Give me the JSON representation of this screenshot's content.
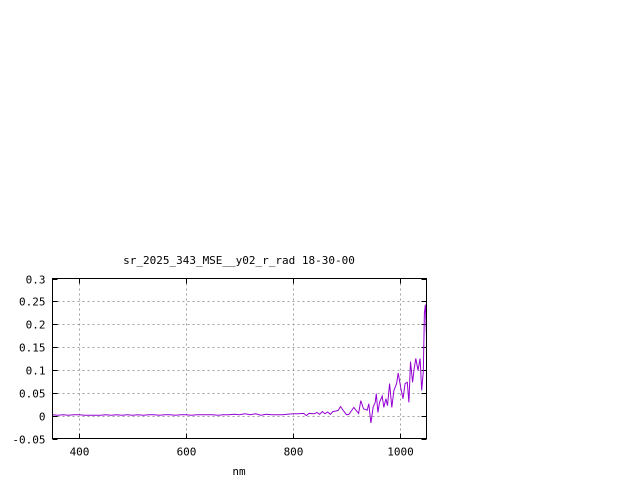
{
  "chart_data": {
    "type": "line",
    "title": "sr_2025_343_MSE__y02_r_rad 18-30-00",
    "xlabel": "nm",
    "ylabel": "",
    "xlim": [
      350,
      1050
    ],
    "ylim": [
      -0.05,
      0.3
    ],
    "xticks": [
      400,
      600,
      800,
      1000
    ],
    "xtick_labels": [
      "400",
      "600",
      "800",
      "1000"
    ],
    "yticks": [
      -0.05,
      0,
      0.05,
      0.1,
      0.15,
      0.2,
      0.25,
      0.3
    ],
    "ytick_labels": [
      "-0.05",
      "0",
      "0.05",
      "0.1",
      "0.15",
      "0.2",
      "0.25",
      "0.3"
    ],
    "grid": true,
    "series_color": "#9400d3",
    "series": [
      {
        "x": [
          350,
          360,
          370,
          380,
          390,
          400,
          410,
          420,
          430,
          440,
          450,
          460,
          470,
          480,
          490,
          500,
          510,
          520,
          530,
          540,
          550,
          560,
          570,
          580,
          590,
          600,
          610,
          620,
          630,
          640,
          650,
          660,
          670,
          680,
          690,
          700,
          710,
          720,
          730,
          740,
          750,
          760,
          770,
          780,
          790,
          800,
          810,
          820,
          825,
          830,
          840,
          845,
          850,
          855,
          860,
          865,
          870,
          875,
          880,
          885,
          889,
          895,
          900,
          905,
          914,
          923,
          927,
          932,
          939,
          942,
          946,
          950,
          954,
          956,
          959,
          962,
          967,
          970,
          974,
          977,
          981,
          985,
          989,
          994,
          997,
          1002,
          1006,
          1010,
          1014,
          1017,
          1020,
          1024,
          1027,
          1030,
          1034,
          1038,
          1041,
          1044,
          1046,
          1048,
          1050
        ],
        "y": [
          0.002,
          0.001,
          0.002,
          0.001,
          0.002,
          0.002,
          0.001,
          0.001,
          0.001,
          0.001,
          0.002,
          0.001,
          0.002,
          0.001,
          0.002,
          0.001,
          0.002,
          0.001,
          0.002,
          0.002,
          0.001,
          0.002,
          0.002,
          0.001,
          0.002,
          0.002,
          0.001,
          0.002,
          0.002,
          0.002,
          0.002,
          0.001,
          0.002,
          0.002,
          0.003,
          0.002,
          0.004,
          0.002,
          0.004,
          0.001,
          0.003,
          0.002,
          0.002,
          0.002,
          0.003,
          0.004,
          0.004,
          0.005,
          0.0,
          0.005,
          0.004,
          0.007,
          0.003,
          0.009,
          0.004,
          0.008,
          0.003,
          0.009,
          0.01,
          0.012,
          0.02,
          0.01,
          0.002,
          0.003,
          0.018,
          0.005,
          0.033,
          0.015,
          0.012,
          0.026,
          -0.016,
          0.018,
          0.029,
          0.048,
          0.007,
          0.029,
          0.043,
          0.018,
          0.037,
          0.022,
          0.07,
          0.018,
          0.055,
          0.07,
          0.093,
          0.059,
          0.037,
          0.07,
          0.073,
          0.029,
          0.118,
          0.073,
          0.103,
          0.125,
          0.099,
          0.125,
          0.055,
          0.096,
          0.224,
          0.243,
          0.17
        ]
      }
    ]
  }
}
